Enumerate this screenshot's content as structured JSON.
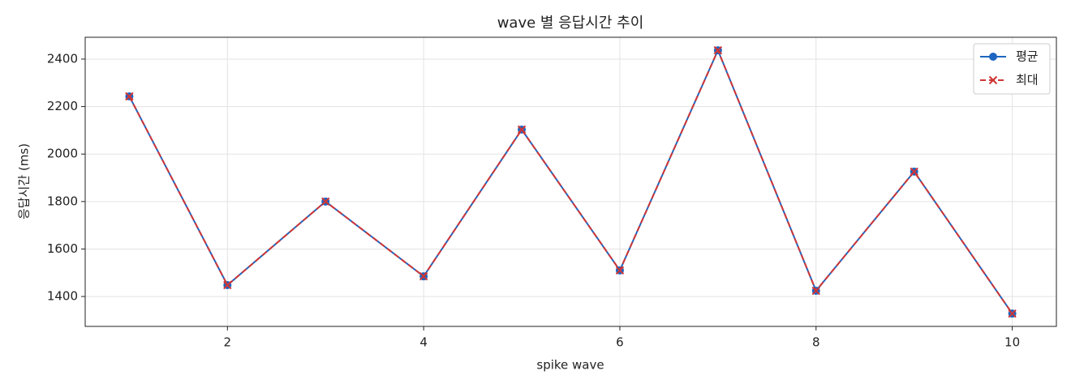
{
  "chart_data": {
    "type": "line",
    "title": "wave 별 응답시간 추이",
    "xlabel": "spike wave",
    "ylabel": "응답시간 (ms)",
    "x": [
      1,
      2,
      3,
      4,
      5,
      6,
      7,
      8,
      9,
      10
    ],
    "series": [
      {
        "name": "평균",
        "color": "#1f66c1",
        "marker": "o",
        "linestyle": "solid",
        "values": [
          2243,
          1448,
          1800,
          1485,
          2103,
          1510,
          2437,
          1424,
          1926,
          1328
        ]
      },
      {
        "name": "최대",
        "color": "#d03535",
        "marker": "x",
        "linestyle": "dashed",
        "values": [
          2243,
          1448,
          1800,
          1485,
          2103,
          1510,
          2437,
          1424,
          1926,
          1328
        ]
      }
    ],
    "xlim": [
      0.55,
      10.45
    ],
    "xticks": [
      2,
      4,
      6,
      8,
      10
    ],
    "ylim": [
      1274,
      2492
    ],
    "yticks": [
      1400,
      1600,
      1800,
      2000,
      2200,
      2400
    ],
    "grid": true,
    "legend": "upper right"
  }
}
